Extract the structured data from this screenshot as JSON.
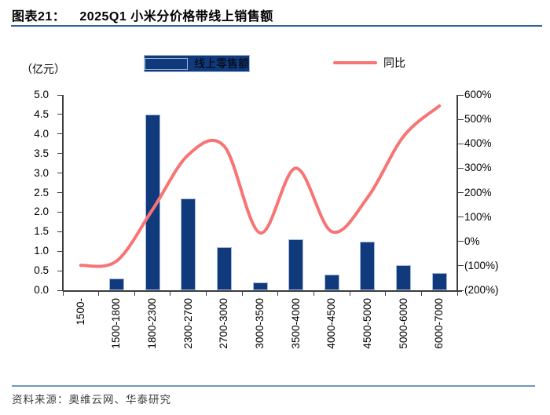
{
  "header": {
    "label": "图表21：",
    "title": "2025Q1 小米分价格带线上销售额"
  },
  "footer": {
    "source": "资料来源：奥维云网、华泰研究"
  },
  "chart_data": {
    "type": "bar",
    "subtype": "combo-bar-line-dual-axis",
    "title": "2025Q1 小米分价格带线上销售额",
    "unit_label": "（亿元）",
    "categories": [
      "1500-",
      "1500-1800",
      "1800-2300",
      "2300-2700",
      "2700-3000",
      "3000-3500",
      "3500-4000",
      "4000-4500",
      "4500-5000",
      "5000-6000",
      "6000-7000"
    ],
    "series": [
      {
        "name": "线上零售额",
        "type": "bar",
        "axis": "left",
        "unit": "亿元",
        "color": "#113a7d",
        "values": [
          0,
          0.3,
          4.5,
          2.35,
          1.1,
          0.2,
          1.3,
          0.4,
          1.25,
          0.65,
          0.45
        ]
      },
      {
        "name": "同比",
        "type": "line",
        "axis": "right",
        "unit": "%",
        "color": "#f87474",
        "values": [
          -98,
          -80,
          130,
          355,
          390,
          35,
          300,
          40,
          180,
          430,
          555
        ]
      }
    ],
    "left_axis": {
      "min": 0,
      "max": 5,
      "step": 0.5,
      "labels": [
        "5.0",
        "4.5",
        "4.0",
        "3.5",
        "3.0",
        "2.5",
        "2.0",
        "1.5",
        "1.0",
        "0.5",
        "0.0"
      ]
    },
    "right_axis": {
      "min": -200,
      "max": 600,
      "step": 100,
      "labels": [
        "600%",
        "500%",
        "400%",
        "300%",
        "200%",
        "100%",
        "0%",
        "(100%)",
        "(200%)"
      ]
    },
    "legend_position": "top",
    "grid": false
  }
}
